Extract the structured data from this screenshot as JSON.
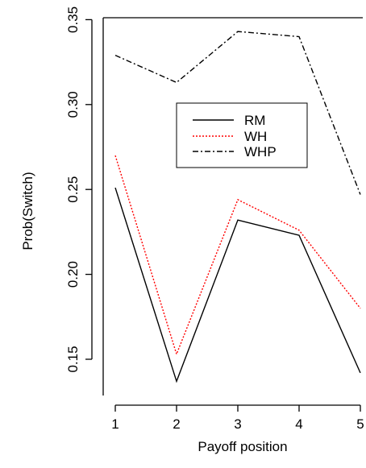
{
  "chart_data": {
    "type": "line",
    "xlabel": "Payoff position",
    "ylabel": "Prob(Switch)",
    "x": [
      1,
      2,
      3,
      4,
      5
    ],
    "xlim": [
      1,
      5
    ],
    "ylim": [
      0.13,
      0.35
    ],
    "x_ticks": [
      "1",
      "2",
      "3",
      "4",
      "5"
    ],
    "y_ticks": [
      "0.15",
      "0.20",
      "0.25",
      "0.30",
      "0.35"
    ],
    "y_tick_values": [
      0.15,
      0.2,
      0.25,
      0.3,
      0.35
    ],
    "grid": false,
    "legend_position": "center-right",
    "series": [
      {
        "name": "RM",
        "values": [
          0.251,
          0.137,
          0.232,
          0.223,
          0.142
        ],
        "color": "#000000",
        "dash": "solid"
      },
      {
        "name": "WH",
        "values": [
          0.27,
          0.153,
          0.244,
          0.226,
          0.18
        ],
        "color": "#ff0000",
        "dash": "dotted"
      },
      {
        "name": "WHP",
        "values": [
          0.329,
          0.313,
          0.343,
          0.34,
          0.247
        ],
        "color": "#000000",
        "dash": "dashdot"
      }
    ]
  }
}
